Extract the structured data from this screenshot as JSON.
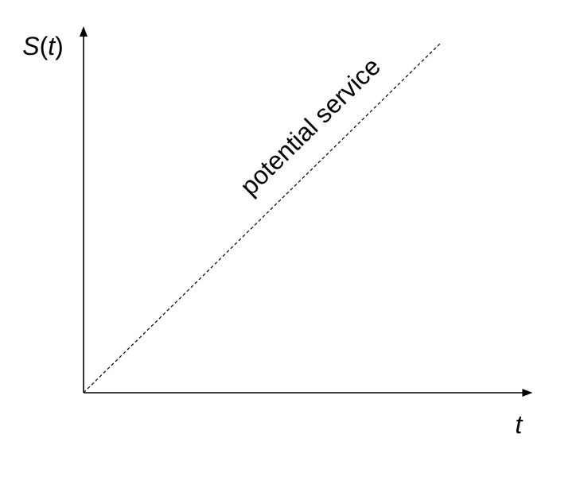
{
  "chart_data": {
    "type": "line",
    "title": "",
    "xlabel": "t",
    "ylabel_parts": {
      "func": "S",
      "open": "(",
      "var": "t",
      "close": ")"
    },
    "series": [
      {
        "name": "potential service",
        "style": "dashed",
        "color": "#000000",
        "x": [
          0,
          1
        ],
        "y": [
          0,
          1
        ]
      }
    ],
    "xlim": [
      0,
      1.26
    ],
    "ylim": [
      0,
      1.05
    ],
    "grid": false,
    "legend": "none",
    "ticks": false
  }
}
